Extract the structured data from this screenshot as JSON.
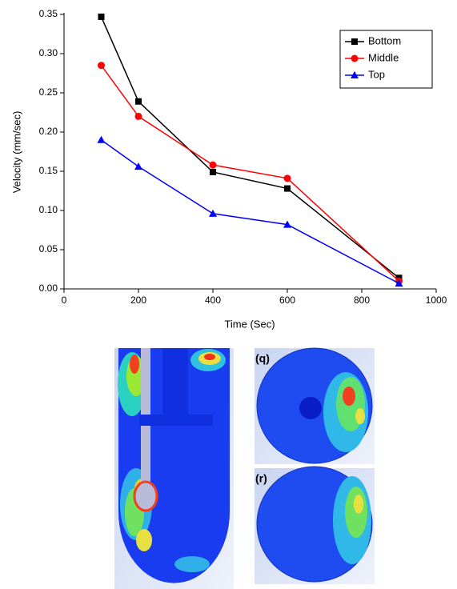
{
  "chart_data": {
    "type": "line",
    "xlabel": "Time (Sec)",
    "ylabel": "Velocity (mm/sec)",
    "series": [
      {
        "name": "Bottom",
        "color": "#000000",
        "marker": "square",
        "x": [
          100,
          200,
          400,
          600,
          900
        ],
        "values": [
          0.347,
          0.239,
          0.149,
          0.128,
          0.014
        ]
      },
      {
        "name": "Middle",
        "color": "#ff0000",
        "marker": "circle",
        "x": [
          100,
          200,
          400,
          600,
          900
        ],
        "values": [
          0.285,
          0.22,
          0.158,
          0.141,
          0.01
        ]
      },
      {
        "name": "Top",
        "color": "#0000ff",
        "marker": "triangle",
        "x": [
          100,
          200,
          400,
          600,
          900
        ],
        "values": [
          0.19,
          0.156,
          0.096,
          0.082,
          0.007
        ]
      }
    ],
    "xlim": [
      0,
      1000
    ],
    "xticks": [
      0,
      200,
      400,
      600,
      800,
      1000
    ],
    "ylim": [
      0,
      0.35
    ],
    "yticks": [
      {
        "value": 0,
        "label": "0.00"
      },
      {
        "value": 0.05,
        "label": "0.05"
      },
      {
        "value": 0.1,
        "label": "0.10"
      },
      {
        "value": 0.15,
        "label": "0.15"
      },
      {
        "value": 0.2,
        "label": "0.20"
      },
      {
        "value": 0.25,
        "label": "0.25"
      },
      {
        "value": 0.3,
        "label": "0.30"
      },
      {
        "value": 0.35,
        "label": "0.35"
      }
    ],
    "legend": "top-right",
    "grid": false
  },
  "image_labels": [
    "(q)",
    "(r)"
  ]
}
